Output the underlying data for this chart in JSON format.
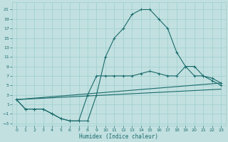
{
  "title": "",
  "xlabel": "Humidex (Indice chaleur)",
  "xlim": [
    -0.5,
    23.5
  ],
  "ylim": [
    -3.5,
    22.5
  ],
  "xticks": [
    0,
    1,
    2,
    3,
    4,
    5,
    6,
    7,
    8,
    9,
    10,
    11,
    12,
    13,
    14,
    15,
    16,
    17,
    18,
    19,
    20,
    21,
    22,
    23
  ],
  "yticks": [
    -3,
    -1,
    1,
    3,
    5,
    7,
    9,
    11,
    13,
    15,
    17,
    19,
    21
  ],
  "background_color": "#c2e0e0",
  "line_color": "#1a6b6b",
  "grid_color": "#9ecece",
  "line1_x": [
    0,
    1,
    2,
    3,
    4,
    5,
    6,
    7,
    8,
    9,
    10,
    11,
    12,
    13,
    14,
    15,
    16,
    17,
    18,
    19,
    20,
    21,
    22,
    23
  ],
  "line1_y": [
    2,
    0,
    0,
    0,
    -1,
    -2,
    -2.5,
    -2.5,
    -2.5,
    3,
    11,
    15,
    17,
    20,
    21,
    21,
    19,
    17,
    12,
    9,
    7,
    7,
    6,
    5
  ],
  "line2_x": [
    0,
    1,
    2,
    3,
    4,
    5,
    6,
    7,
    8,
    9,
    10,
    11,
    12,
    13,
    14,
    15,
    16,
    17,
    18,
    19,
    20,
    21,
    22,
    23
  ],
  "line2_y": [
    2,
    0,
    0,
    0,
    -1,
    -2,
    -2.5,
    -2.5,
    3,
    7,
    7,
    7,
    7,
    7,
    7.5,
    8,
    7.5,
    7,
    7,
    9,
    9,
    7,
    6.5,
    5.5
  ],
  "line3_x": [
    0,
    23
  ],
  "line3_y": [
    2,
    5.5
  ],
  "line4_x": [
    0,
    23
  ],
  "line4_y": [
    2,
    4.2
  ]
}
